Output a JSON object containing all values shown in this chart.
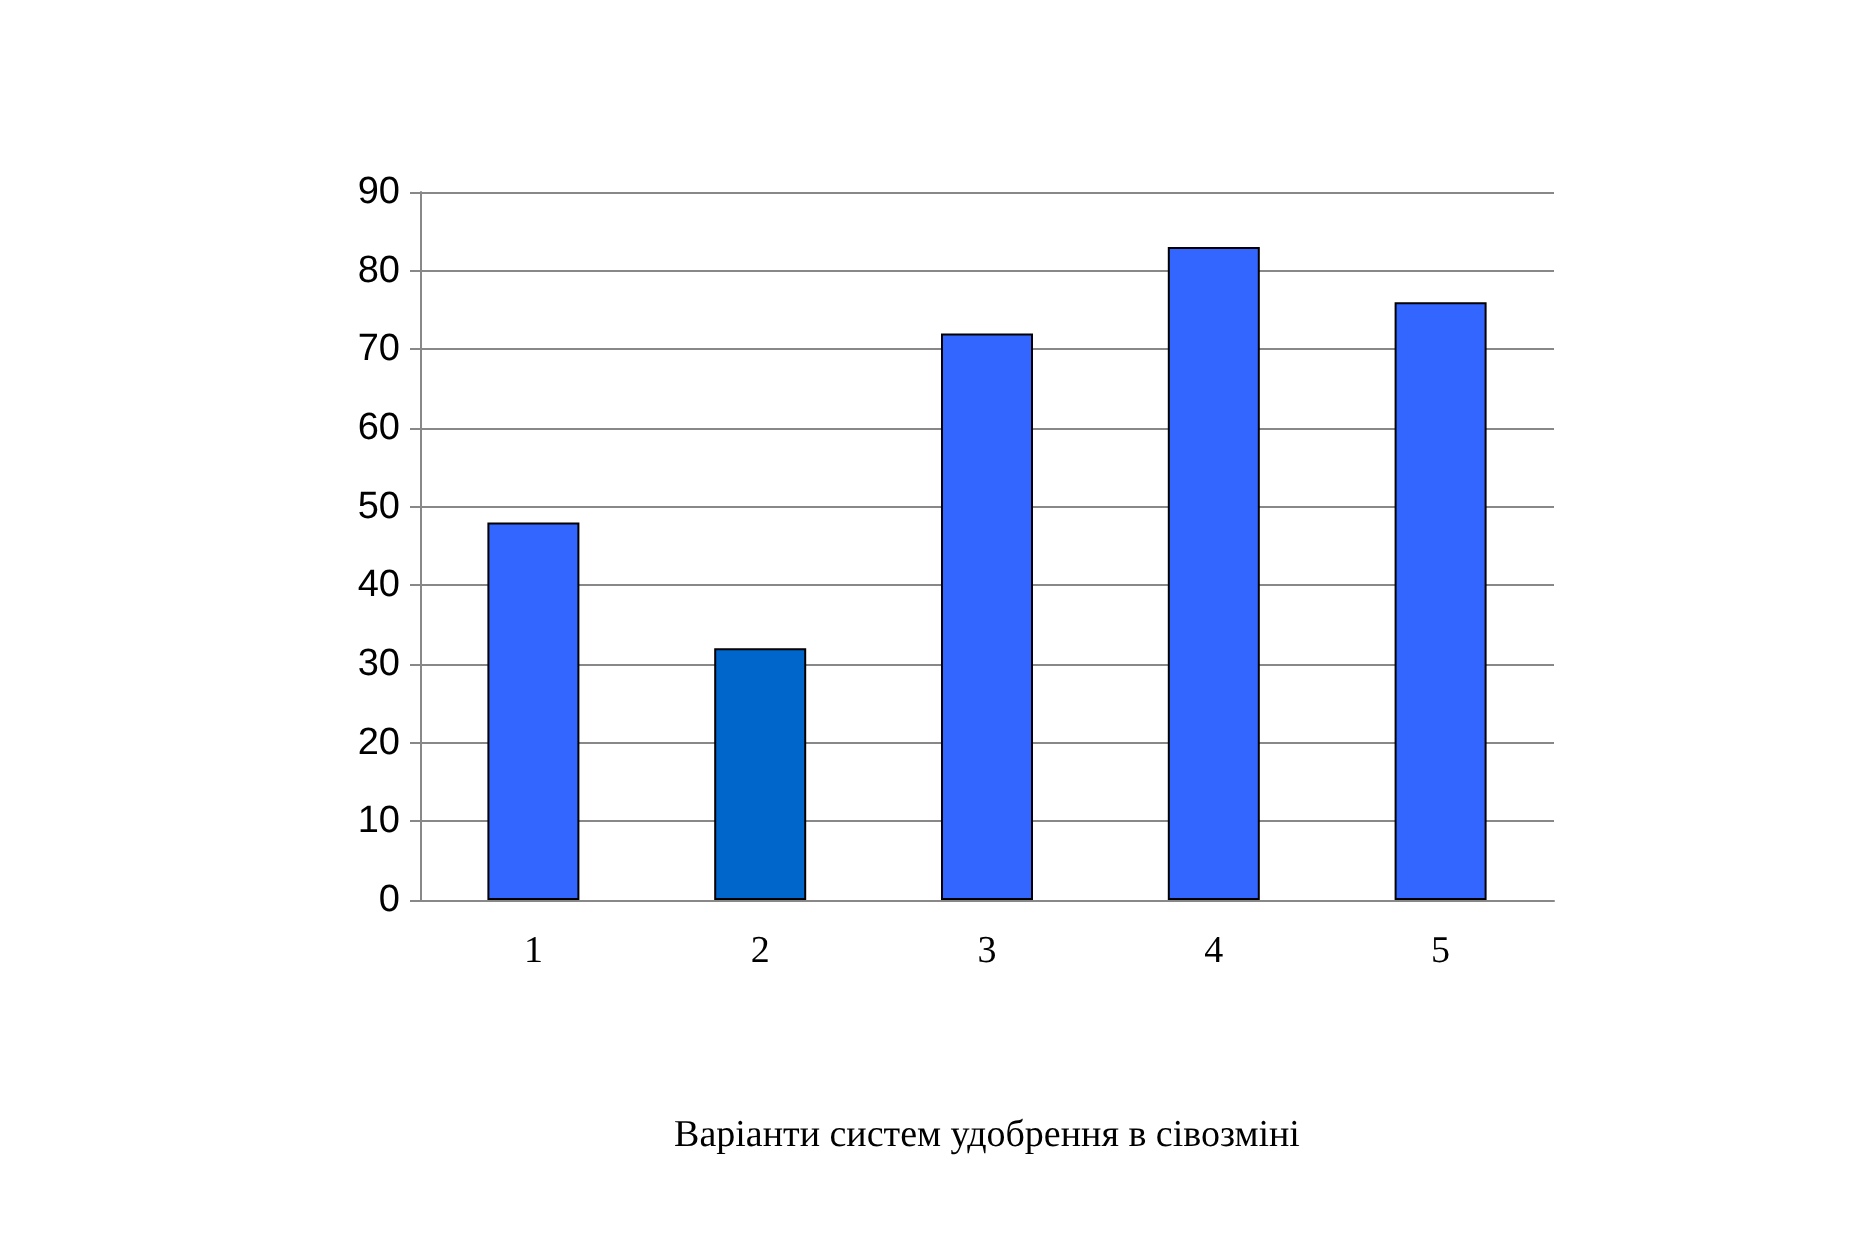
{
  "chart_data": {
    "type": "bar",
    "xlabel": "Варіанти систем удобрення в сівозміні",
    "categories": [
      "1",
      "2",
      "3",
      "4",
      "5"
    ],
    "values": [
      48,
      32,
      72,
      83,
      76
    ],
    "colors": [
      "#3366ff",
      "#0066cc",
      "#3366ff",
      "#3366ff",
      "#3366ff"
    ],
    "ylim": [
      0,
      90
    ],
    "yticks": [
      0,
      10,
      20,
      30,
      40,
      50,
      60,
      70,
      80,
      90
    ],
    "grid": "y"
  }
}
